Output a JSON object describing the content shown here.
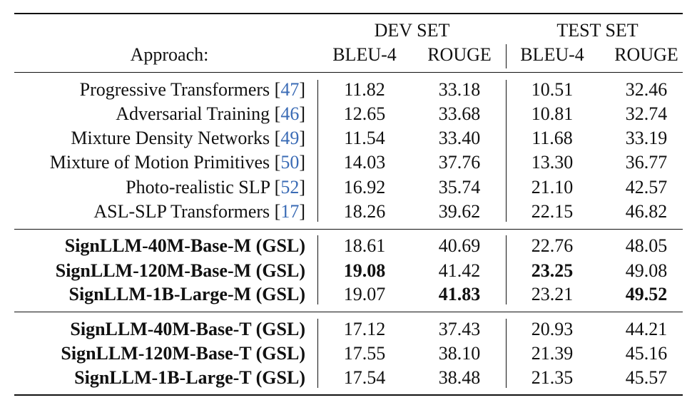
{
  "table": {
    "group_headers": {
      "dev": "DEV SET",
      "test": "TEST SET"
    },
    "column_headers": {
      "approach": "Approach:",
      "dev_bleu": "BLEU-4",
      "dev_rouge": "ROUGE",
      "test_bleu": "BLEU-4",
      "test_rouge": "ROUGE"
    },
    "sections": [
      {
        "rows": [
          {
            "approach": "Progressive Transformers",
            "ref": "47",
            "bold_name": false,
            "values": [
              "11.82",
              "33.18",
              "10.51",
              "32.46"
            ],
            "bold_values": [
              false,
              false,
              false,
              false
            ]
          },
          {
            "approach": "Adversarial Training",
            "ref": "46",
            "bold_name": false,
            "values": [
              "12.65",
              "33.68",
              "10.81",
              "32.74"
            ],
            "bold_values": [
              false,
              false,
              false,
              false
            ]
          },
          {
            "approach": "Mixture Density Networks",
            "ref": "49",
            "bold_name": false,
            "values": [
              "11.54",
              "33.40",
              "11.68",
              "33.19"
            ],
            "bold_values": [
              false,
              false,
              false,
              false
            ]
          },
          {
            "approach": "Mixture of Motion Primitives",
            "ref": "50",
            "bold_name": false,
            "values": [
              "14.03",
              "37.76",
              "13.30",
              "36.77"
            ],
            "bold_values": [
              false,
              false,
              false,
              false
            ]
          },
          {
            "approach": "Photo-realistic SLP",
            "ref": "52",
            "bold_name": false,
            "values": [
              "16.92",
              "35.74",
              "21.10",
              "42.57"
            ],
            "bold_values": [
              false,
              false,
              false,
              false
            ]
          },
          {
            "approach": "ASL-SLP Transformers",
            "ref": "17",
            "bold_name": false,
            "values": [
              "18.26",
              "39.62",
              "22.15",
              "46.82"
            ],
            "bold_values": [
              false,
              false,
              false,
              false
            ]
          }
        ]
      },
      {
        "rows": [
          {
            "approach": "SignLLM-40M-Base-M (GSL)",
            "ref": "",
            "bold_name": true,
            "values": [
              "18.61",
              "40.69",
              "22.76",
              "48.05"
            ],
            "bold_values": [
              false,
              false,
              false,
              false
            ]
          },
          {
            "approach": "SignLLM-120M-Base-M (GSL)",
            "ref": "",
            "bold_name": true,
            "values": [
              "19.08",
              "41.42",
              "23.25",
              "49.08"
            ],
            "bold_values": [
              true,
              false,
              true,
              false
            ]
          },
          {
            "approach": "SignLLM-1B-Large-M (GSL)",
            "ref": "",
            "bold_name": true,
            "values": [
              "19.07",
              "41.83",
              "23.21",
              "49.52"
            ],
            "bold_values": [
              false,
              true,
              false,
              true
            ]
          }
        ]
      },
      {
        "rows": [
          {
            "approach": "SignLLM-40M-Base-T (GSL)",
            "ref": "",
            "bold_name": true,
            "values": [
              "17.12",
              "37.43",
              "20.93",
              "44.21"
            ],
            "bold_values": [
              false,
              false,
              false,
              false
            ]
          },
          {
            "approach": "SignLLM-120M-Base-T (GSL)",
            "ref": "",
            "bold_name": true,
            "values": [
              "17.55",
              "38.10",
              "21.39",
              "45.16"
            ],
            "bold_values": [
              false,
              false,
              false,
              false
            ]
          },
          {
            "approach": "SignLLM-1B-Large-T (GSL)",
            "ref": "",
            "bold_name": true,
            "values": [
              "17.54",
              "38.48",
              "21.35",
              "45.57"
            ],
            "bold_values": [
              false,
              false,
              false,
              false
            ]
          }
        ]
      }
    ],
    "colors": {
      "citation": "#3a6bb5",
      "text": "#111111"
    }
  }
}
